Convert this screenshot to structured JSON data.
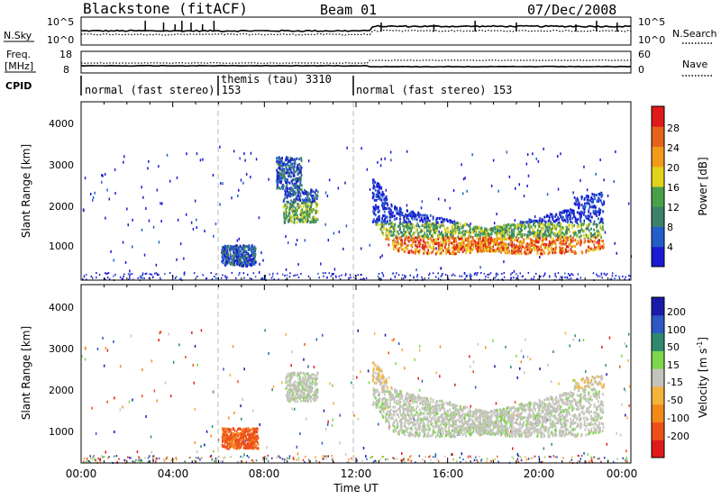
{
  "header": {
    "title": "Blackstone (fitACF)",
    "beam": "Beam 01",
    "date": "07/Dec/2008"
  },
  "noise_panel": {
    "left_label": "N.Sky",
    "left_ticks": [
      "10^5",
      "10^0"
    ],
    "right_ticks": [
      "10^5",
      "10^0"
    ],
    "right_label": "N.Search"
  },
  "freq_panel": {
    "left_label_line1": "Freq.",
    "left_label_line2": "[MHz]",
    "left_ticks": [
      "18",
      "8"
    ],
    "right_ticks": [
      "60",
      "0"
    ],
    "right_label": "Nave"
  },
  "cpid": {
    "label": "CPID",
    "segments": [
      "normal (fast stereo) 153",
      "themis (tau) 3310",
      "normal (fast stereo) 153"
    ]
  },
  "xaxis": {
    "label": "Time UT",
    "ticks": [
      "00:00",
      "04:00",
      "08:00",
      "12:00",
      "16:00",
      "20:00",
      "00:00"
    ],
    "range_hours": [
      0,
      24
    ]
  },
  "power_panel": {
    "ylabel": "Slant Range [km]",
    "yticks": [
      "1000",
      "2000",
      "3000",
      "4000"
    ],
    "colorbar_label": "Power [dB]",
    "colorbar_ticks": [
      "4",
      "8",
      "12",
      "16",
      "20",
      "24",
      "28"
    ],
    "colors": [
      "#1a1ad2",
      "#245ec8",
      "#3c7f6a",
      "#49a04b",
      "#e3d21a",
      "#f29a1a",
      "#e6621a",
      "#e01a1a"
    ]
  },
  "velocity_panel": {
    "ylabel": "Slant Range [km]",
    "yticks": [
      "1000",
      "2000",
      "3000",
      "4000"
    ],
    "colorbar_label_main": "Velocity [m s",
    "colorbar_label_sup": "-1",
    "colorbar_label_end": "]",
    "colorbar_ticks": [
      "-200",
      "-100",
      "-50",
      "-15",
      "15",
      "50",
      "100",
      "200"
    ],
    "colors": [
      "#e01a1a",
      "#ee4f1a",
      "#f28a1a",
      "#f2b43a",
      "#c4c4bc",
      "#7ed64a",
      "#2e8a6e",
      "#2e58c4",
      "#1a1aa8"
    ]
  },
  "chart_data": [
    {
      "type": "heatmap",
      "title": "Power",
      "xlabel": "Time UT",
      "ylabel": "Slant Range [km]",
      "xlim": [
        0,
        24
      ],
      "ylim": [
        180,
        4500
      ],
      "colorbar_range_db": [
        0,
        32
      ],
      "regions": [
        {
          "t_start": 6.1,
          "t_end": 7.6,
          "r_min": 550,
          "r_max": 1050,
          "power_db": 10
        },
        {
          "t_start": 8.8,
          "t_end": 10.3,
          "r_min": 1600,
          "r_max": 2400,
          "power_db": 12
        },
        {
          "t_start": 8.5,
          "t_end": 9.6,
          "r_min": 2400,
          "r_max": 3200,
          "power_db": 6
        },
        {
          "t_start": 12.7,
          "t_end": 22.8,
          "r_min": 800,
          "r_max": 2200,
          "power_db": 20
        }
      ],
      "dashed_markers_hours": [
        6.0,
        12.0
      ]
    },
    {
      "type": "heatmap",
      "title": "Velocity",
      "xlabel": "Time UT",
      "ylabel": "Slant Range [km]",
      "xlim": [
        0,
        24
      ],
      "ylim": [
        180,
        4500
      ],
      "colorbar_range_ms": [
        -200,
        200
      ],
      "regions": [
        {
          "t_start": 6.1,
          "t_end": 7.7,
          "r_min": 550,
          "r_max": 1050,
          "velocity_ms": -75
        },
        {
          "t_start": 8.9,
          "t_end": 10.3,
          "r_min": 1700,
          "r_max": 2400,
          "velocity_ms": 0
        },
        {
          "t_start": 12.7,
          "t_end": 22.8,
          "r_min": 900,
          "r_max": 2200,
          "velocity_ms": 0
        }
      ],
      "dashed_markers_hours": [
        6.0,
        12.0
      ]
    }
  ]
}
